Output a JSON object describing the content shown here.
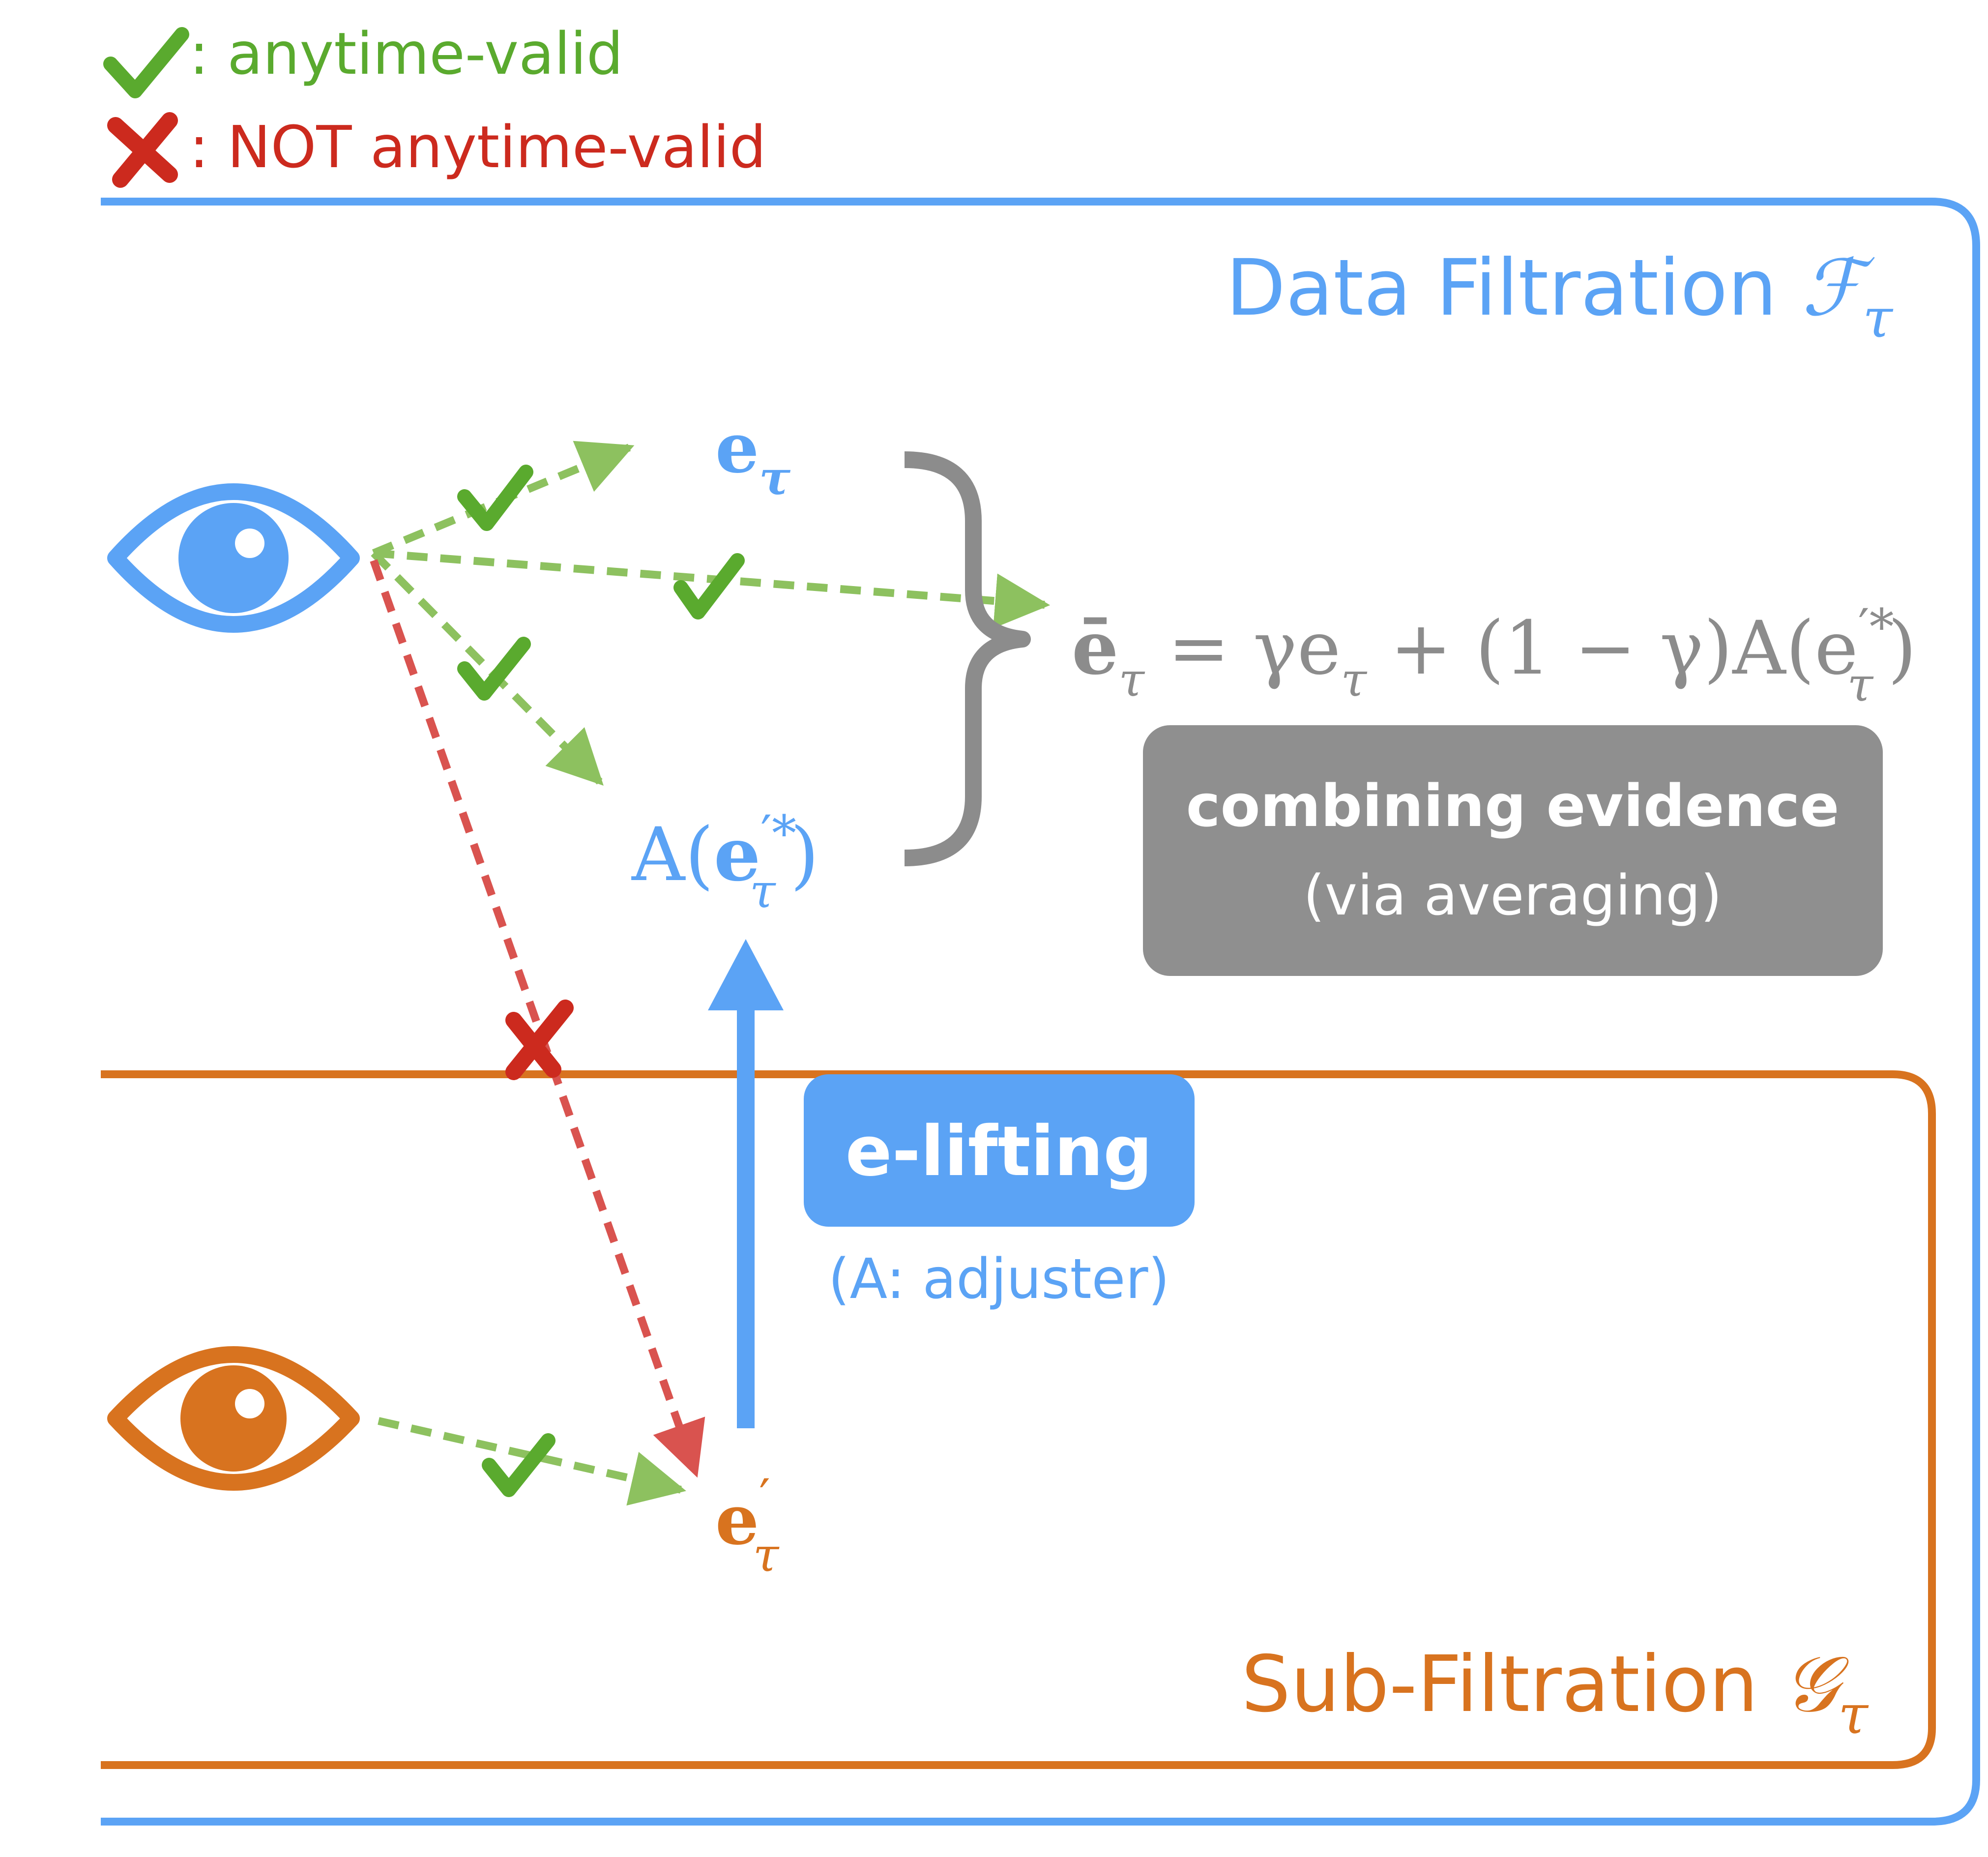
{
  "colors": {
    "blue": "#5ba3f5",
    "orange": "#d8731f",
    "green": "#5aaa2e",
    "green_arrow": "#8dc15f",
    "red": "#cc2a1e",
    "red_arrow": "#d9534f",
    "gray": "#8c8c8c",
    "box_gray": "#8f8f8f"
  },
  "legend": {
    "valid_label": ": anytime-valid",
    "invalid_label": ": NOT anytime-valid",
    "valid_icon": "check-icon",
    "invalid_icon": "cross-icon"
  },
  "outer_region": {
    "label_text": "Data Filtration ",
    "label_symbol": "ℱ",
    "label_sub": "τ"
  },
  "inner_region": {
    "label_text": "Sub-Filtration ",
    "label_symbol": "𝒢",
    "label_sub": "τ"
  },
  "nodes": {
    "e_tau": {
      "main": "e",
      "sub": "τ"
    },
    "adjusted": {
      "prefix": "A(",
      "main": "e",
      "sup": "′*",
      "sub": "τ",
      "suffix": ")"
    },
    "e_prime": {
      "main": "e",
      "sup": "′",
      "sub": "τ"
    }
  },
  "formula": {
    "lhs": "ē",
    "lhs_sub": "τ",
    "eq": " = γe",
    "mid_sub": "τ",
    "plus": " + (1 − γ)A(e",
    "sup": "′*",
    "end_sub": "τ",
    "close": ")"
  },
  "combine_box": {
    "title": "combining evidence",
    "subtitle": "(via averaging)"
  },
  "lift_box": {
    "title": "e-lifting",
    "caption": "(A: adjuster)"
  },
  "icons": {
    "data_observer": "eye-icon",
    "sub_observer": "eye-icon"
  }
}
